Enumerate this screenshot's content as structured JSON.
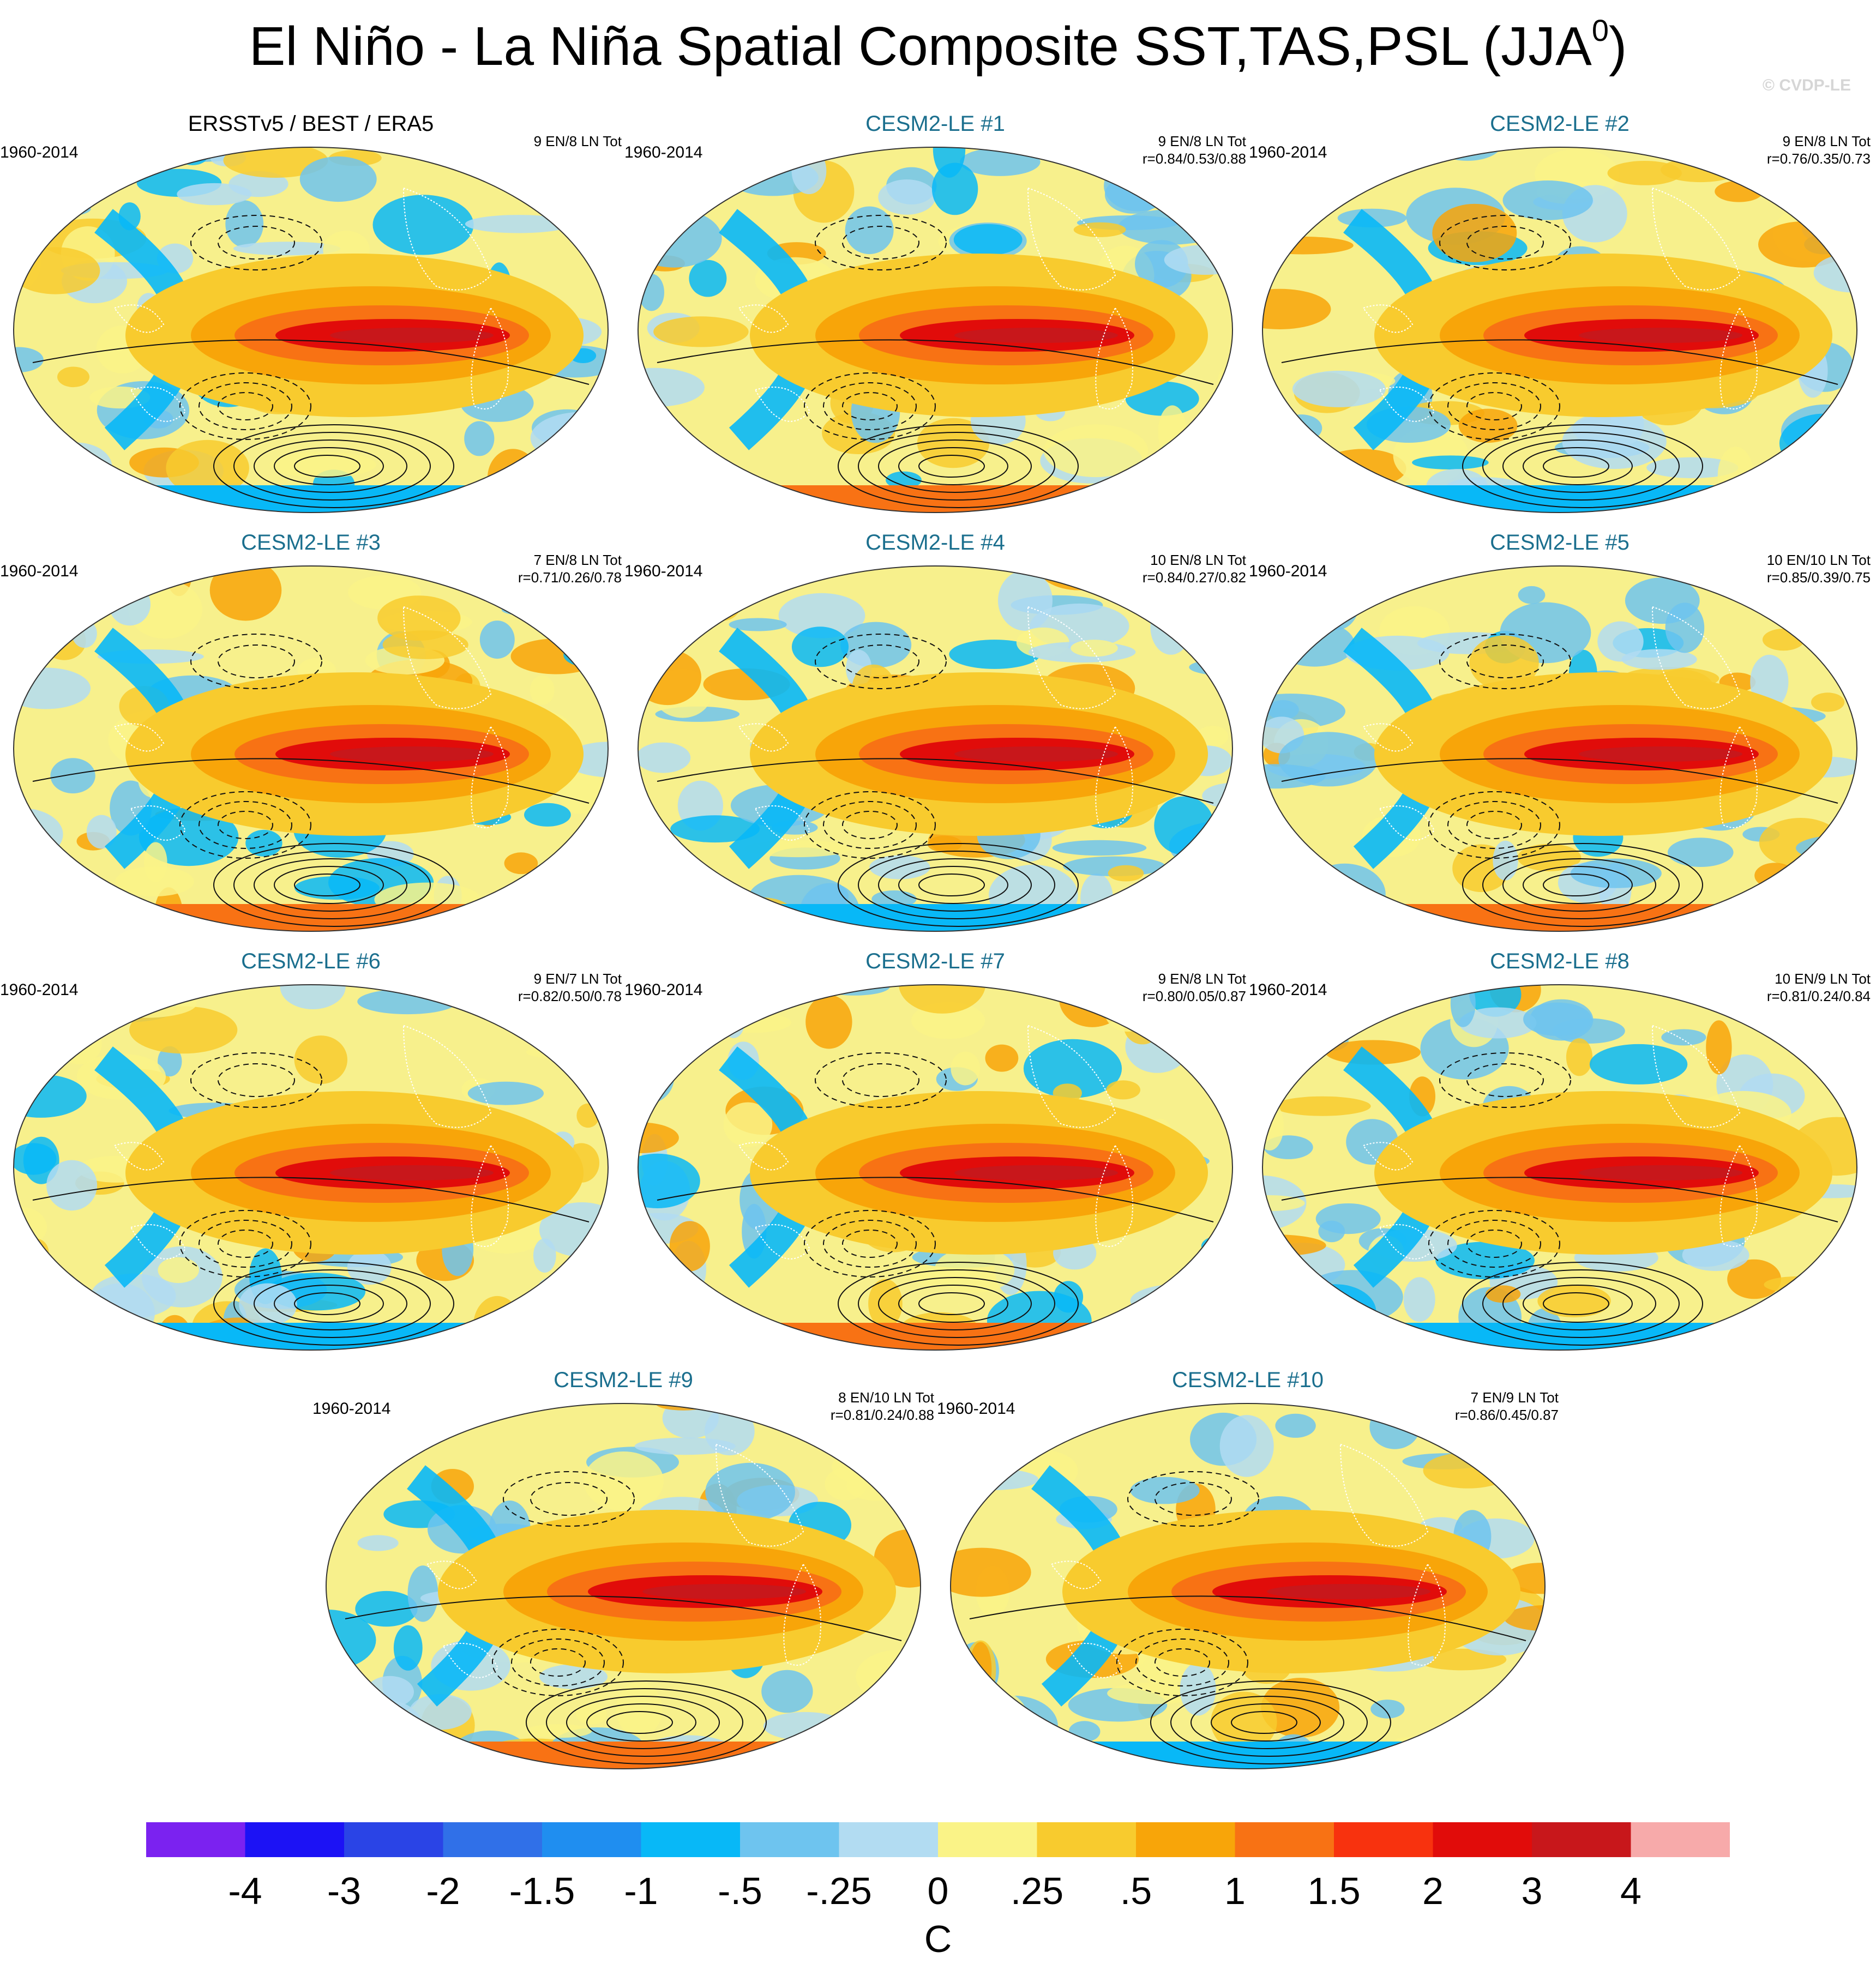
{
  "title": {
    "text": "El Niño - La Niña Spatial Composite SST,TAS,PSL (JJA",
    "sup": "0",
    "close": ")"
  },
  "copyright": "© CVDP-LE",
  "colors": {
    "model_title": "#1b6f8e",
    "ocean_base": "#f7f08c",
    "palette": [
      "#7b22f0",
      "#1c12f5",
      "#2a44e6",
      "#3070e8",
      "#1f8ef0",
      "#08b8f7",
      "#6ec4ef",
      "#b2dcf2",
      "#faf387",
      "#f8cb2e",
      "#f8a509",
      "#f87214",
      "#f8320e",
      "#e10c0a",
      "#c8171b",
      "#f7aaaa"
    ]
  },
  "panels": [
    {
      "title": "ERSSTv5 / BEST / ERA5",
      "obs": true,
      "period": "1960-2014",
      "counts": "9 EN/8 LN Tot",
      "r": ""
    },
    {
      "title": "CESM2-LE #1",
      "obs": false,
      "period": "1960-2014",
      "counts": "9 EN/8 LN Tot",
      "r": "r=0.84/0.53/0.88"
    },
    {
      "title": "CESM2-LE #2",
      "obs": false,
      "period": "1960-2014",
      "counts": "9 EN/8 LN Tot",
      "r": "r=0.76/0.35/0.73"
    },
    {
      "title": "CESM2-LE #3",
      "obs": false,
      "period": "1960-2014",
      "counts": "7 EN/8 LN Tot",
      "r": "r=0.71/0.26/0.78"
    },
    {
      "title": "CESM2-LE #4",
      "obs": false,
      "period": "1960-2014",
      "counts": "10 EN/8 LN Tot",
      "r": "r=0.84/0.27/0.82"
    },
    {
      "title": "CESM2-LE #5",
      "obs": false,
      "period": "1960-2014",
      "counts": "10 EN/10 LN Tot",
      "r": "r=0.85/0.39/0.75"
    },
    {
      "title": "CESM2-LE #6",
      "obs": false,
      "period": "1960-2014",
      "counts": "9 EN/7 LN Tot",
      "r": "r=0.82/0.50/0.78"
    },
    {
      "title": "CESM2-LE #7",
      "obs": false,
      "period": "1960-2014",
      "counts": "9 EN/8 LN Tot",
      "r": "r=0.80/0.05/0.87"
    },
    {
      "title": "CESM2-LE #8",
      "obs": false,
      "period": "1960-2014",
      "counts": "10 EN/9 LN Tot",
      "r": "r=0.81/0.24/0.84"
    },
    {
      "title": "CESM2-LE #9",
      "obs": false,
      "period": "1960-2014",
      "counts": "8 EN/10 LN Tot",
      "r": "r=0.81/0.24/0.88"
    },
    {
      "title": "CESM2-LE #10",
      "obs": false,
      "period": "1960-2014",
      "counts": "7 EN/9 LN Tot",
      "r": "r=0.86/0.45/0.87"
    }
  ],
  "chart_data": {
    "type": "heatmap",
    "title": "El Niño - La Niña Spatial Composite SST,TAS,PSL (JJA0)",
    "variables": [
      "SST",
      "TAS",
      "PSL"
    ],
    "season": "JJA0",
    "period": "1960-2014",
    "colorbar": {
      "labels": [
        "-4",
        "-3",
        "-2",
        "-1.5",
        "-1",
        "-.5",
        "-.25",
        "0",
        ".25",
        ".5",
        "1",
        "1.5",
        "2",
        "3",
        "4"
      ],
      "units": "C",
      "n_colors": 16
    },
    "features": [
      "Warm tongue across central-eastern equatorial Pacific (2 to 4 C)",
      "Cool horseshoe in western Pacific",
      "PSL contours: solid positive, dashed negative, Southern Ocean wave train"
    ]
  }
}
